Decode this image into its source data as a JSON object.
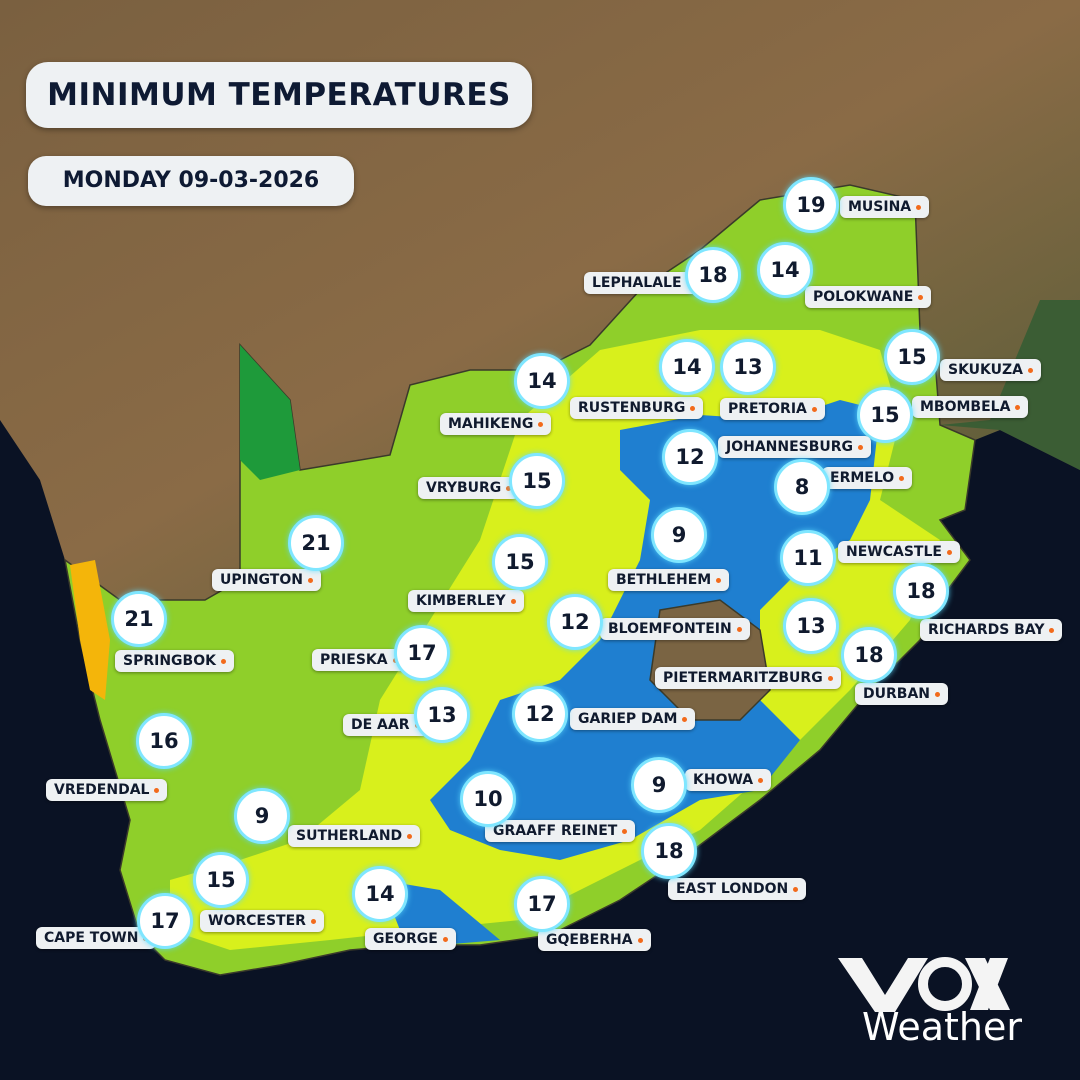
{
  "header": {
    "title": "MINIMUM TEMPERATURES",
    "date": "MONDAY 09-03-2026"
  },
  "cities": [
    {
      "name": "MUSINA",
      "temp": 19
    },
    {
      "name": "LEPHALALE",
      "temp": 18
    },
    {
      "name": "POLOKWANE",
      "temp": 14
    },
    {
      "name": "SKUKUZA",
      "temp": 15
    },
    {
      "name": "MBOMBELA",
      "temp": 15
    },
    {
      "name": "MAHIKENG",
      "temp": 14
    },
    {
      "name": "RUSTENBURG",
      "temp": 14
    },
    {
      "name": "PRETORIA",
      "temp": 13
    },
    {
      "name": "JOHANNESBURG",
      "temp": 12
    },
    {
      "name": "ERMELO",
      "temp": 8
    },
    {
      "name": "VRYBURG",
      "temp": 15
    },
    {
      "name": "UPINGTON",
      "temp": 21
    },
    {
      "name": "KIMBERLEY",
      "temp": 15
    },
    {
      "name": "BETHLEHEM",
      "temp": 9
    },
    {
      "name": "NEWCASTLE",
      "temp": 11
    },
    {
      "name": "RICHARDS BAY",
      "temp": 18
    },
    {
      "name": "SPRINGBOK",
      "temp": 21
    },
    {
      "name": "BLOEMFONTEIN",
      "temp": 12
    },
    {
      "name": "PIETERMARITZBURG",
      "temp": 13
    },
    {
      "name": "DURBAN",
      "temp": 18
    },
    {
      "name": "PRIESKA",
      "temp": 17
    },
    {
      "name": "DE AAR",
      "temp": 13
    },
    {
      "name": "GARIEP DAM",
      "temp": 12
    },
    {
      "name": "VREDENDAL",
      "temp": 16
    },
    {
      "name": "KHOWA",
      "temp": 9
    },
    {
      "name": "SUTHERLAND",
      "temp": 9
    },
    {
      "name": "GRAAFF REINET",
      "temp": 10
    },
    {
      "name": "EAST LONDON",
      "temp": 18
    },
    {
      "name": "WORCESTER",
      "temp": 15
    },
    {
      "name": "CAPE TOWN",
      "temp": 17
    },
    {
      "name": "GEORGE",
      "temp": 14
    },
    {
      "name": "GQEBERHA",
      "temp": 17
    }
  ],
  "logo": {
    "label": "Weather"
  }
}
